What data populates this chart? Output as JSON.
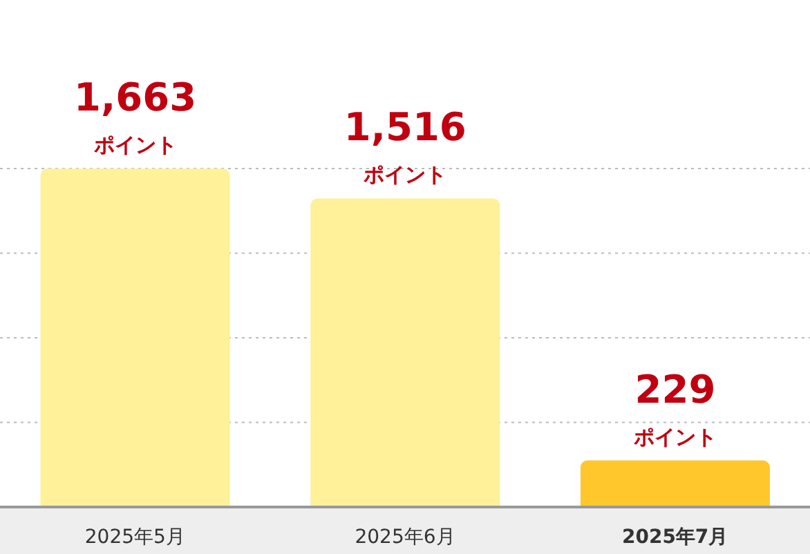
{
  "chart_data": {
    "type": "bar",
    "categories": [
      "2025年5月",
      "2025年6月",
      "2025年7月"
    ],
    "values": [
      1663,
      1516,
      229
    ],
    "colors": [
      "#fff09a",
      "#fff09a",
      "#ffc72c"
    ],
    "value_labels": [
      "1,663\nポイント",
      "1,516\nポイント",
      "229\nポイント"
    ],
    "grid": "y",
    "tick_labels": "x"
  }
}
